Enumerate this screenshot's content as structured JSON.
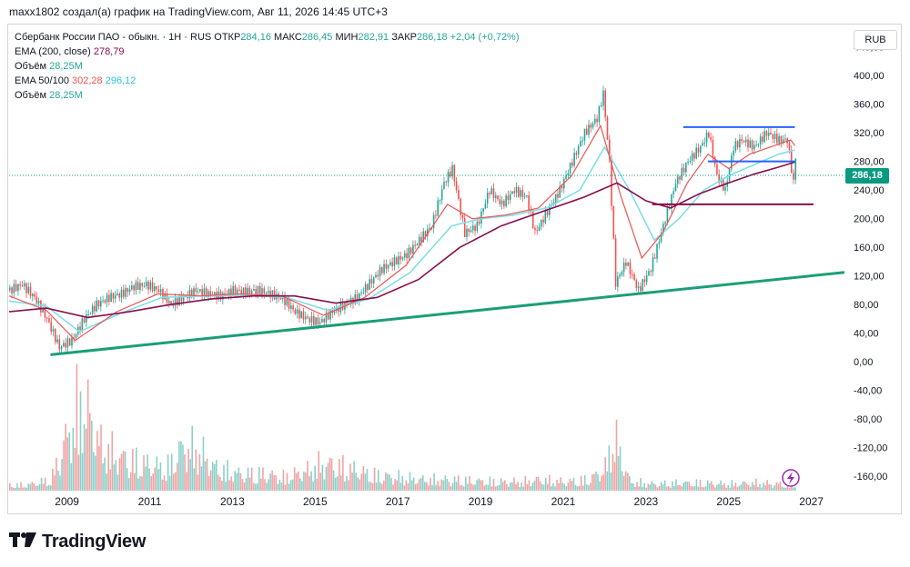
{
  "caption": "maxx1802 создал(а) график на TradingView.com, Авг 11, 2026 14:45 UTC+3",
  "legend": {
    "symbol": "Сбербанк России ПАО - обыкн. · 1Н · RUS",
    "open_label": "ОТКР",
    "open": "284,16",
    "high_label": "МАКС",
    "high": "286,45",
    "low_label": "МИН",
    "low": "282,91",
    "close_label": "ЗАКР",
    "close": "286,18",
    "change": "+2,04 (+0,72%)",
    "ema200_label": "EMA (200, close)",
    "ema200_value": "278,79",
    "volume_label": "Объём",
    "volume_value": "28,25M",
    "ema50100_label": "EMA 50/100",
    "ema50_value": "302,28",
    "ema100_value": "296,12",
    "volume2_label": "Объём",
    "volume2_value": "28,25M"
  },
  "currency": "RUB",
  "price_tag": "286,18",
  "logo": "TradingView",
  "colors": {
    "up": "#26a69a",
    "down": "#ef5350",
    "ema200": "#880e4f",
    "ema50": "#ef5350",
    "ema100": "#80deea",
    "trendline": "#1b9e77",
    "channel": "#2962ff",
    "support": "#880e4f"
  },
  "chart_data": {
    "type": "line",
    "ylim": [
      -180,
      470
    ],
    "xlim": [
      2007.6,
      2027.8
    ],
    "y_ticks": [
      "440,00",
      "400,00",
      "360,00",
      "320,00",
      "280,00",
      "240,00",
      "200,00",
      "160,00",
      "120,00",
      "80,00",
      "40,00",
      "0,00",
      "-40,00",
      "-80,00",
      "-120,00",
      "-160,00"
    ],
    "y_tick_values": [
      440,
      400,
      360,
      320,
      280,
      240,
      200,
      160,
      120,
      80,
      40,
      0,
      -40,
      -80,
      -120,
      -160
    ],
    "x_ticks": [
      "2009",
      "2011",
      "2013",
      "2015",
      "2017",
      "2019",
      "2021",
      "2023",
      "2025",
      "2027"
    ],
    "x_tick_values": [
      2009,
      2011,
      2013,
      2015,
      2017,
      2019,
      2021,
      2023,
      2025,
      2027
    ],
    "price": {
      "x": [
        2007.6,
        2007.9,
        2008.2,
        2008.5,
        2008.8,
        2009.1,
        2009.4,
        2009.7,
        2010.0,
        2010.3,
        2010.6,
        2010.9,
        2011.2,
        2011.5,
        2011.8,
        2012.1,
        2012.4,
        2012.7,
        2013.0,
        2013.3,
        2013.6,
        2013.9,
        2014.2,
        2014.5,
        2014.8,
        2015.1,
        2015.4,
        2015.7,
        2016.0,
        2016.3,
        2016.6,
        2016.9,
        2017.2,
        2017.5,
        2017.8,
        2018.1,
        2018.3,
        2018.6,
        2018.9,
        2019.2,
        2019.5,
        2019.8,
        2020.1,
        2020.3,
        2020.6,
        2020.9,
        2021.2,
        2021.5,
        2021.8,
        2021.95,
        2022.1,
        2022.25,
        2022.5,
        2022.8,
        2023.1,
        2023.4,
        2023.7,
        2024.0,
        2024.3,
        2024.5,
        2024.7,
        2024.9,
        2025.1,
        2025.3,
        2025.6,
        2025.9,
        2026.2,
        2026.4,
        2026.55,
        2026.6
      ],
      "y": [
        100,
        108,
        90,
        60,
        20,
        30,
        60,
        80,
        90,
        95,
        105,
        108,
        100,
        80,
        90,
        100,
        95,
        92,
        100,
        98,
        100,
        95,
        88,
        70,
        60,
        55,
        70,
        80,
        90,
        110,
        130,
        140,
        150,
        170,
        190,
        250,
        270,
        180,
        190,
        240,
        220,
        240,
        230,
        180,
        210,
        240,
        280,
        320,
        340,
        375,
        280,
        110,
        140,
        100,
        130,
        190,
        250,
        280,
        300,
        320,
        260,
        240,
        300,
        310,
        300,
        320,
        310,
        310,
        250,
        286
      ]
    },
    "ema50": {
      "x": [
        2007.6,
        2008.5,
        2009.2,
        2010.2,
        2011.2,
        2012.2,
        2013.2,
        2014.2,
        2015.2,
        2016.2,
        2017.2,
        2018.2,
        2018.8,
        2019.6,
        2020.4,
        2021.2,
        2021.9,
        2022.4,
        2022.9,
        2023.4,
        2024.0,
        2024.5,
        2025.0,
        2025.5,
        2026.0,
        2026.5,
        2026.6
      ],
      "y": [
        92,
        72,
        30,
        70,
        95,
        92,
        95,
        92,
        65,
        90,
        135,
        220,
        200,
        205,
        215,
        260,
        330,
        230,
        145,
        180,
        250,
        290,
        270,
        290,
        300,
        310,
        302
      ]
    },
    "ema100": {
      "x": [
        2007.6,
        2008.5,
        2009.3,
        2010.3,
        2011.3,
        2012.3,
        2013.3,
        2014.3,
        2015.3,
        2016.3,
        2017.3,
        2018.3,
        2019.0,
        2019.8,
        2020.6,
        2021.4,
        2022.0,
        2022.6,
        2023.2,
        2023.8,
        2024.4,
        2025.0,
        2025.6,
        2026.2,
        2026.6
      ],
      "y": [
        85,
        78,
        42,
        68,
        90,
        92,
        93,
        90,
        72,
        88,
        125,
        190,
        200,
        205,
        215,
        240,
        300,
        240,
        170,
        200,
        240,
        260,
        275,
        290,
        296
      ]
    },
    "ema200": {
      "x": [
        2007.6,
        2008.5,
        2009.5,
        2010.5,
        2011.5,
        2012.5,
        2013.5,
        2014.5,
        2015.5,
        2016.5,
        2017.5,
        2018.5,
        2019.5,
        2020.5,
        2021.5,
        2022.3,
        2023.0,
        2023.6,
        2024.3,
        2025.0,
        2025.6,
        2026.2,
        2026.6
      ],
      "y": [
        70,
        75,
        62,
        70,
        80,
        88,
        92,
        92,
        82,
        90,
        115,
        160,
        190,
        210,
        230,
        250,
        225,
        215,
        235,
        250,
        262,
        272,
        279
      ]
    },
    "volume": {
      "x": [
        2008.0,
        2008.6,
        2009.1,
        2009.3,
        2009.5,
        2009.8,
        2010.3,
        2010.8,
        2011.4,
        2011.8,
        2012.2,
        2012.6,
        2013.2,
        2013.8,
        2014.2,
        2014.8,
        2015.2,
        2015.8,
        2016.4,
        2017.0,
        2017.6,
        2018.2,
        2018.8,
        2019.4,
        2020.0,
        2020.4,
        2021.0,
        2021.6,
        2022.0,
        2022.2,
        2022.6,
        2023.2,
        2023.8,
        2024.4,
        2025.0,
        2025.6,
        2026.2,
        2026.6
      ],
      "y": [
        5,
        10,
        60,
        80,
        70,
        40,
        30,
        25,
        20,
        40,
        35,
        20,
        15,
        15,
        12,
        18,
        25,
        20,
        14,
        12,
        10,
        10,
        9,
        8,
        8,
        10,
        8,
        10,
        20,
        50,
        8,
        6,
        7,
        7,
        6,
        7,
        6,
        5
      ]
    },
    "channel_top": 328,
    "channel_bottom": 280,
    "support_level": 220,
    "trendline": {
      "x": [
        2008.6,
        2027.8
      ],
      "y": [
        10,
        125
      ]
    }
  }
}
